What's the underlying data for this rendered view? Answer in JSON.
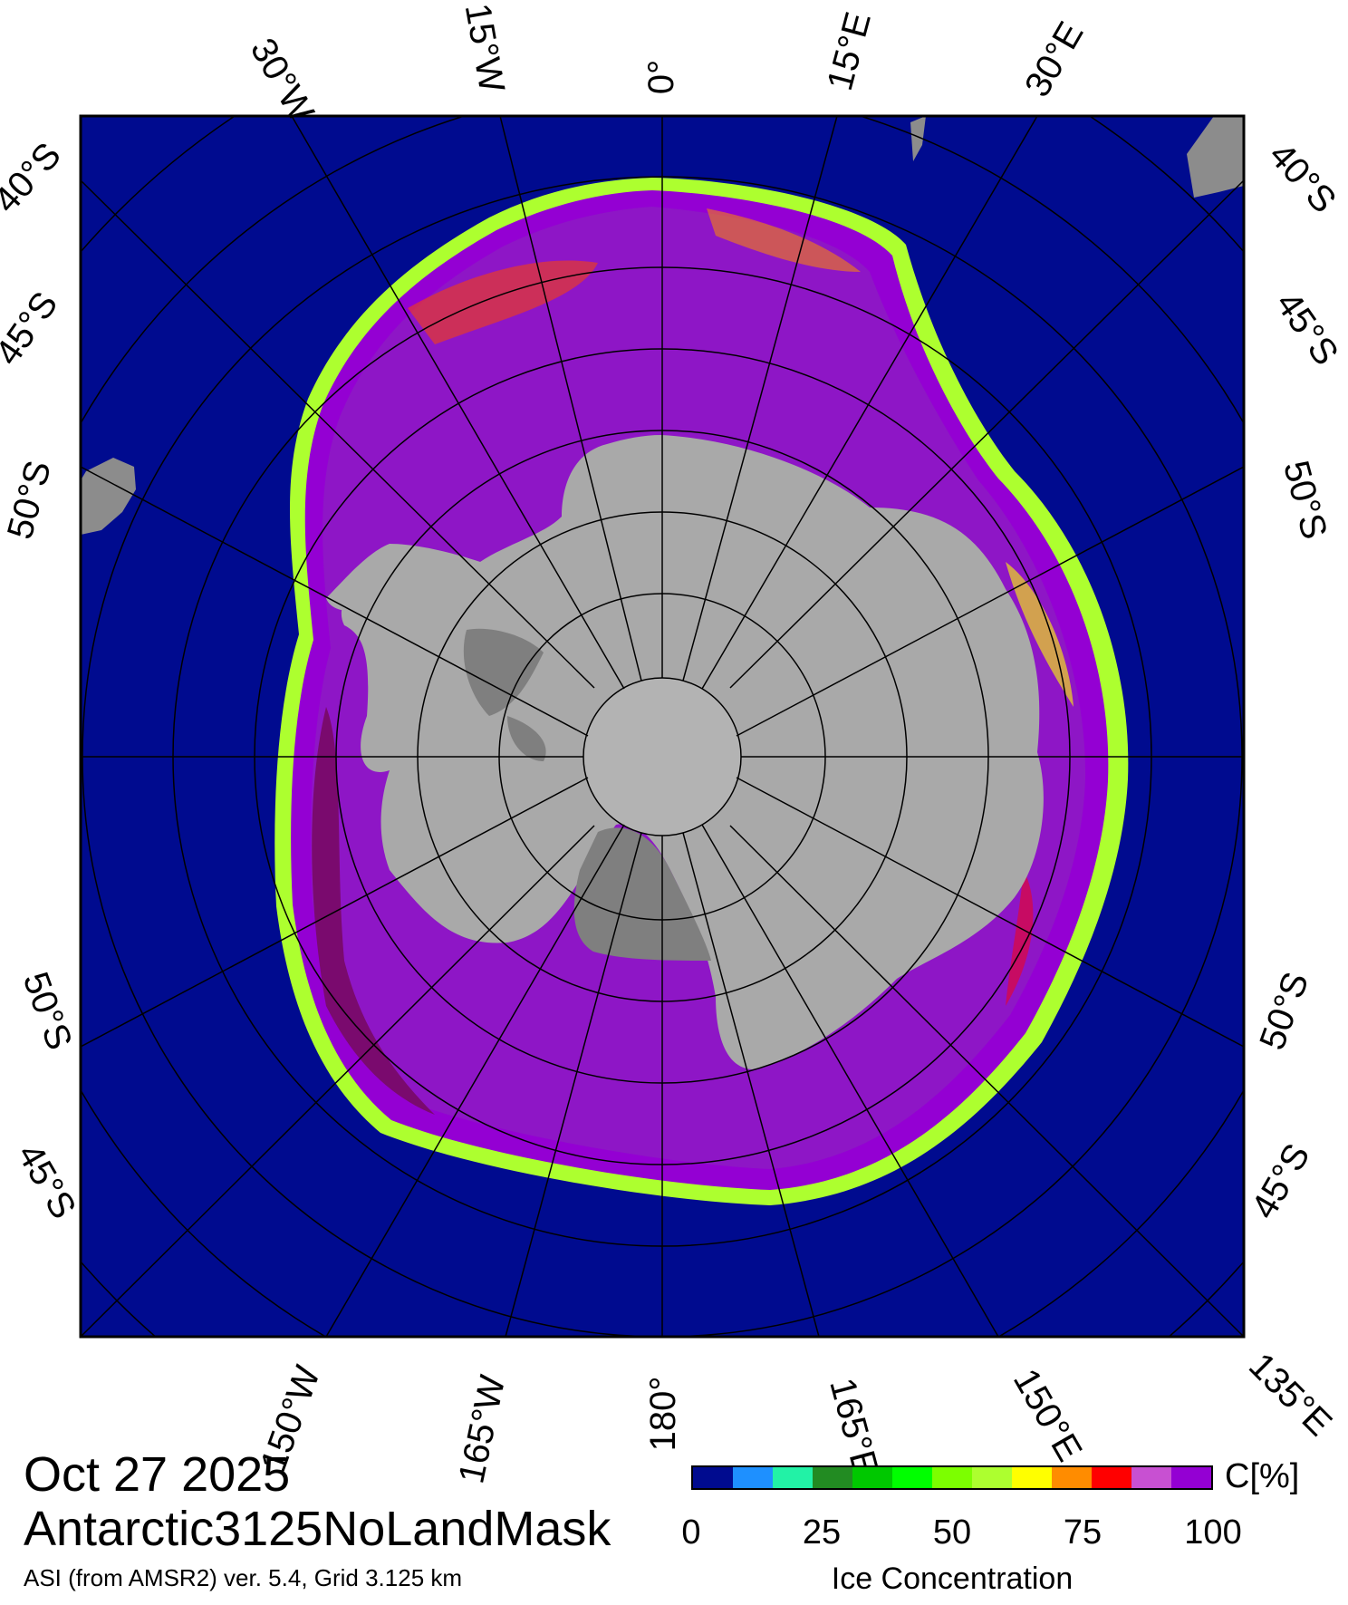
{
  "map": {
    "projection": "south polar stereographic",
    "colors": {
      "ocean": "#000b8f",
      "land": "#a9a9a9",
      "ice_shelf": "#7f7f7f",
      "outside_data": "#8c8c8c",
      "grid": "#000000"
    },
    "longitude_labels_top": [
      "30°W",
      "15°W",
      "0°",
      "15°E",
      "30°E"
    ],
    "longitude_labels_bottom": [
      "150°W",
      "165°W",
      "180°",
      "165°E",
      "150°E",
      "135°E"
    ],
    "latitude_labels_left": [
      "40°S",
      "45°S",
      "50°S",
      "50°S",
      "45°S"
    ],
    "latitude_labels_right": [
      "40°S",
      "45°S",
      "50°S",
      "50°S",
      "45°S"
    ]
  },
  "footer": {
    "date": "Oct 27 2025",
    "product": "Antarctic3125NoLandMask",
    "source": "ASI (from AMSR2) ver. 5.4,  Grid 3.125 km"
  },
  "colorbar": {
    "unit": "C[%]",
    "title": "Ice Concentration",
    "ticks": [
      "0",
      "25",
      "50",
      "75",
      "100"
    ],
    "colors": [
      "#000b8f",
      "#1e90ff",
      "#22f2a6",
      "#228b22",
      "#00c800",
      "#00ff00",
      "#7cff00",
      "#adff2f",
      "#ffff00",
      "#ff8c00",
      "#ff0000",
      "#c850d2",
      "#9400d3"
    ]
  }
}
